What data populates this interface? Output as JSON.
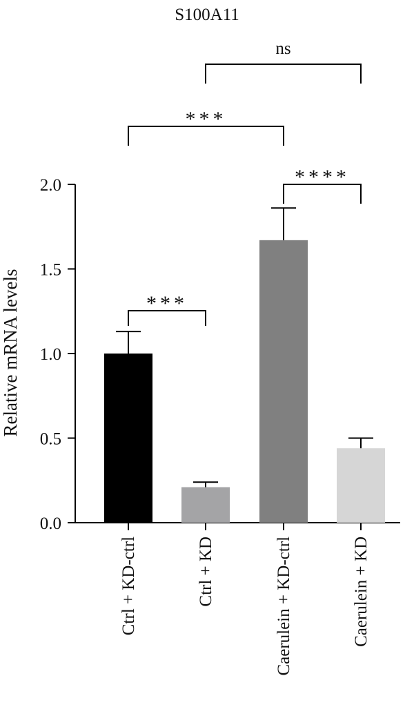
{
  "chart_data": {
    "type": "bar",
    "title": "S100A11",
    "ylabel": "Relative mRNA levels",
    "xlabel": "",
    "ylim": [
      0,
      2.0
    ],
    "yticks": [
      "0.0",
      "0.5",
      "1.0",
      "1.5",
      "2.0"
    ],
    "yticks_values": [
      0,
      0.5,
      1.0,
      1.5,
      2.0
    ],
    "grid": false,
    "categories": [
      "Ctrl + KD-ctrl",
      "Ctrl + KD",
      "Caerulein + KD-ctrl",
      "Caerulein + KD"
    ],
    "values": [
      1.0,
      0.21,
      1.67,
      0.44
    ],
    "errors": [
      0.13,
      0.03,
      0.19,
      0.06
    ],
    "colors": [
      "#000000",
      "#a4a4a6",
      "#808080",
      "#d6d6d6"
    ],
    "significance": [
      {
        "from": 0,
        "to": 1,
        "label": "***"
      },
      {
        "from": 2,
        "to": 3,
        "label": "****"
      },
      {
        "from": 0,
        "to": 2,
        "label": "***"
      },
      {
        "from": 1,
        "to": 3,
        "label": "ns"
      }
    ]
  }
}
